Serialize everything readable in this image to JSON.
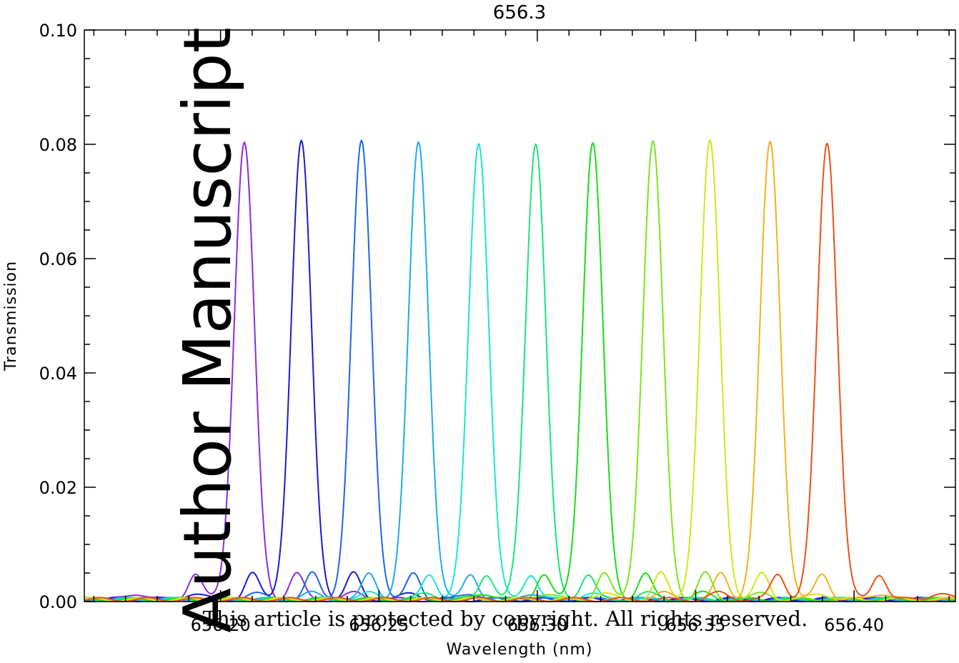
{
  "chart_data": {
    "type": "line",
    "title": "656.3",
    "xlabel": "Wavelength (nm)",
    "ylabel": "Transmission",
    "xlim": [
      656.157,
      656.432
    ],
    "ylim": [
      0.0,
      0.1
    ],
    "x_ticks": [
      "656.20",
      "656.25",
      "656.30",
      "656.35",
      "656.40"
    ],
    "x_tick_values": [
      656.2,
      656.25,
      656.3,
      656.35,
      656.4
    ],
    "y_ticks": [
      "0.00",
      "0.02",
      "0.04",
      "0.06",
      "0.08",
      "0.10"
    ],
    "y_tick_values": [
      0.0,
      0.02,
      0.04,
      0.06,
      0.08,
      0.1
    ],
    "grid": false,
    "peak_transmission": 0.08,
    "peak_fwhm_nm": 0.0075,
    "sidelobe_height": 0.0045,
    "series": [
      {
        "peak": 656.2075,
        "color": "#8a2be2"
      },
      {
        "peak": 656.2255,
        "color": "#1a1acc"
      },
      {
        "peak": 656.2445,
        "color": "#1a66e6"
      },
      {
        "peak": 656.2625,
        "color": "#1eaaf0"
      },
      {
        "peak": 656.2815,
        "color": "#1ae6d2"
      },
      {
        "peak": 656.2995,
        "color": "#1ae67a"
      },
      {
        "peak": 656.3175,
        "color": "#1adc1a"
      },
      {
        "peak": 656.3365,
        "color": "#7ae61a"
      },
      {
        "peak": 656.3545,
        "color": "#d2e61a"
      },
      {
        "peak": 656.3735,
        "color": "#f5b01a"
      },
      {
        "peak": 656.3915,
        "color": "#ee5014"
      }
    ]
  },
  "watermark_text": "Author Manuscript",
  "copyright_text": "This article is protected by copyright. All rights reserved."
}
